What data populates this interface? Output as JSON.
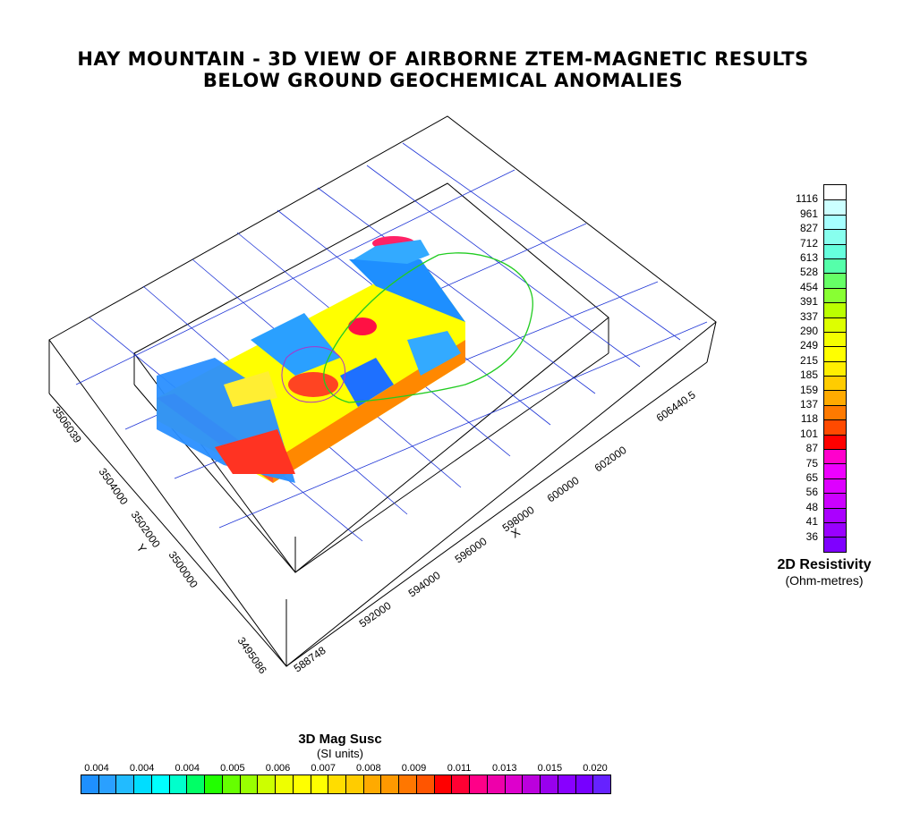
{
  "title": {
    "line1": "HAY MOUNTAIN - 3D VIEW OF AIRBORNE ZTEM-MAGNETIC RESULTS",
    "line2": "BELOW GROUND GEOCHEMICAL ANOMALIES"
  },
  "axes": {
    "x_label": "X",
    "y_label": "Y",
    "x_ticks": [
      "588748",
      "592000",
      "594000",
      "596000",
      "598000",
      "600000",
      "602000",
      "606440.5"
    ],
    "y_ticks": [
      "3495086",
      "3500000",
      "3502000",
      "3504000",
      "3506039"
    ]
  },
  "resistivity_legend": {
    "title": "2D Resistivity",
    "unit": "(Ohm-metres)",
    "labels": [
      "1116",
      "961",
      "827",
      "712",
      "613",
      "528",
      "454",
      "391",
      "337",
      "290",
      "249",
      "215",
      "185",
      "159",
      "137",
      "118",
      "101",
      "87",
      "75",
      "65",
      "56",
      "48",
      "41",
      "36"
    ],
    "colors": [
      "#ffffff",
      "#ccffff",
      "#a6ffff",
      "#88ffee",
      "#66ffdd",
      "#55ffaa",
      "#66ff66",
      "#88ff33",
      "#bbff00",
      "#ddff00",
      "#f4ff00",
      "#ffff00",
      "#ffee00",
      "#ffcc00",
      "#ffaa00",
      "#ff7a00",
      "#ff4a00",
      "#ff0000",
      "#ff00cc",
      "#ee00ff",
      "#dd00ff",
      "#cc00ff",
      "#aa00ff",
      "#9900ff",
      "#7f00ff"
    ]
  },
  "mag_legend": {
    "title": "3D Mag Susc",
    "unit": "(SI units)",
    "labels": [
      "0.004",
      "0.004",
      "0.004",
      "0.005",
      "0.006",
      "0.007",
      "0.008",
      "0.009",
      "0.011",
      "0.013",
      "0.015",
      "0.020"
    ],
    "colors": [
      "#1e90ff",
      "#2aa0ff",
      "#22bbff",
      "#00ddff",
      "#00ffff",
      "#00ffcc",
      "#00ff66",
      "#22ff00",
      "#66ff00",
      "#99ff00",
      "#ccff00",
      "#eeff00",
      "#ffff00",
      "#ffff00",
      "#ffdd00",
      "#ffcc00",
      "#ffaa00",
      "#ff9900",
      "#ff7700",
      "#ff5500",
      "#ff0000",
      "#ff0033",
      "#ff0088",
      "#ee00aa",
      "#dd00cc",
      "#bb00dd",
      "#9900ee",
      "#8800ff",
      "#7700ff",
      "#6622ff"
    ]
  }
}
